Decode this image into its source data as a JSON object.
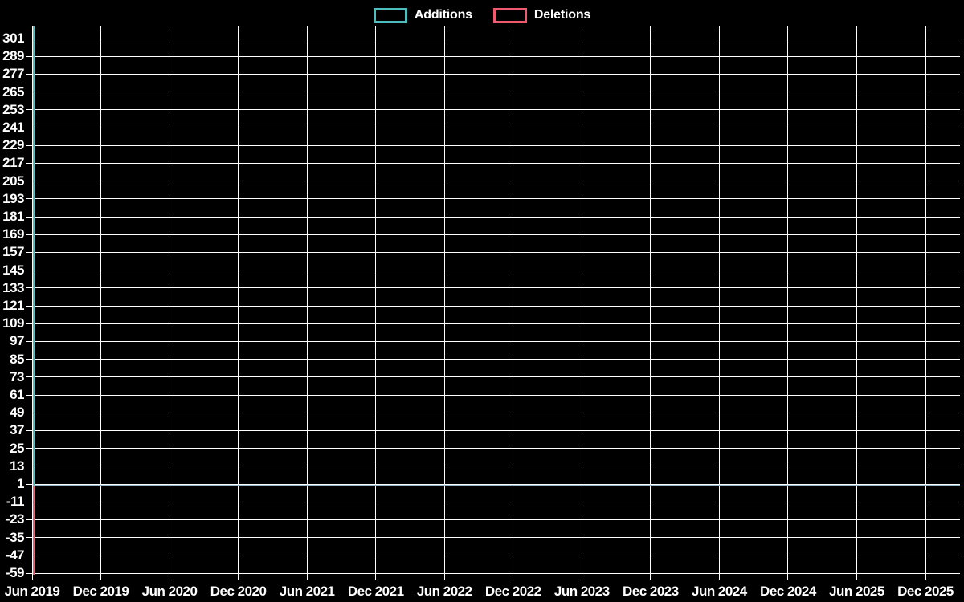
{
  "legend": {
    "items": [
      {
        "label": "Additions",
        "color": "#4dbdbd"
      },
      {
        "label": "Deletions",
        "color": "#ee5b6e"
      }
    ]
  },
  "chart_data": {
    "type": "line",
    "title": "",
    "xlabel": "",
    "ylabel": "",
    "x_tick_labels": [
      "Jun 2019",
      "Dec 2019",
      "Jun 2020",
      "Dec 2020",
      "Jun 2021",
      "Dec 2021",
      "Jun 2022",
      "Dec 2022",
      "Jun 2023",
      "Dec 2023",
      "Jun 2024",
      "Dec 2024",
      "Jun 2025",
      "Dec 2025"
    ],
    "y_tick_labels": [
      "301",
      "289",
      "277",
      "265",
      "253",
      "241",
      "229",
      "217",
      "205",
      "193",
      "181",
      "169",
      "157",
      "145",
      "133",
      "121",
      "109",
      "97",
      "85",
      "73",
      "61",
      "49",
      "37",
      "25",
      "13",
      "1",
      "-11",
      "-23",
      "-35",
      "-47",
      "-59"
    ],
    "ylim": [
      -59,
      309
    ],
    "grid": true,
    "legend_position": "top-center",
    "series": [
      {
        "name": "Additions",
        "color": "#4dbdbd",
        "points": [
          {
            "x": "Jun 2019",
            "y": 309
          }
        ],
        "all_other_values": 0
      },
      {
        "name": "Deletions",
        "color": "#ee5b6e",
        "points": [
          {
            "x": "Jun 2019",
            "y": -59
          }
        ],
        "all_other_values": 0
      }
    ],
    "baseline_value": 0
  },
  "colors": {
    "background": "#000000",
    "gridline": "#ffffff",
    "text": "#ffffff",
    "additions": "#4dbdbd",
    "deletions": "#ee5b6e",
    "flat_baseline": "#8fb7c5"
  }
}
